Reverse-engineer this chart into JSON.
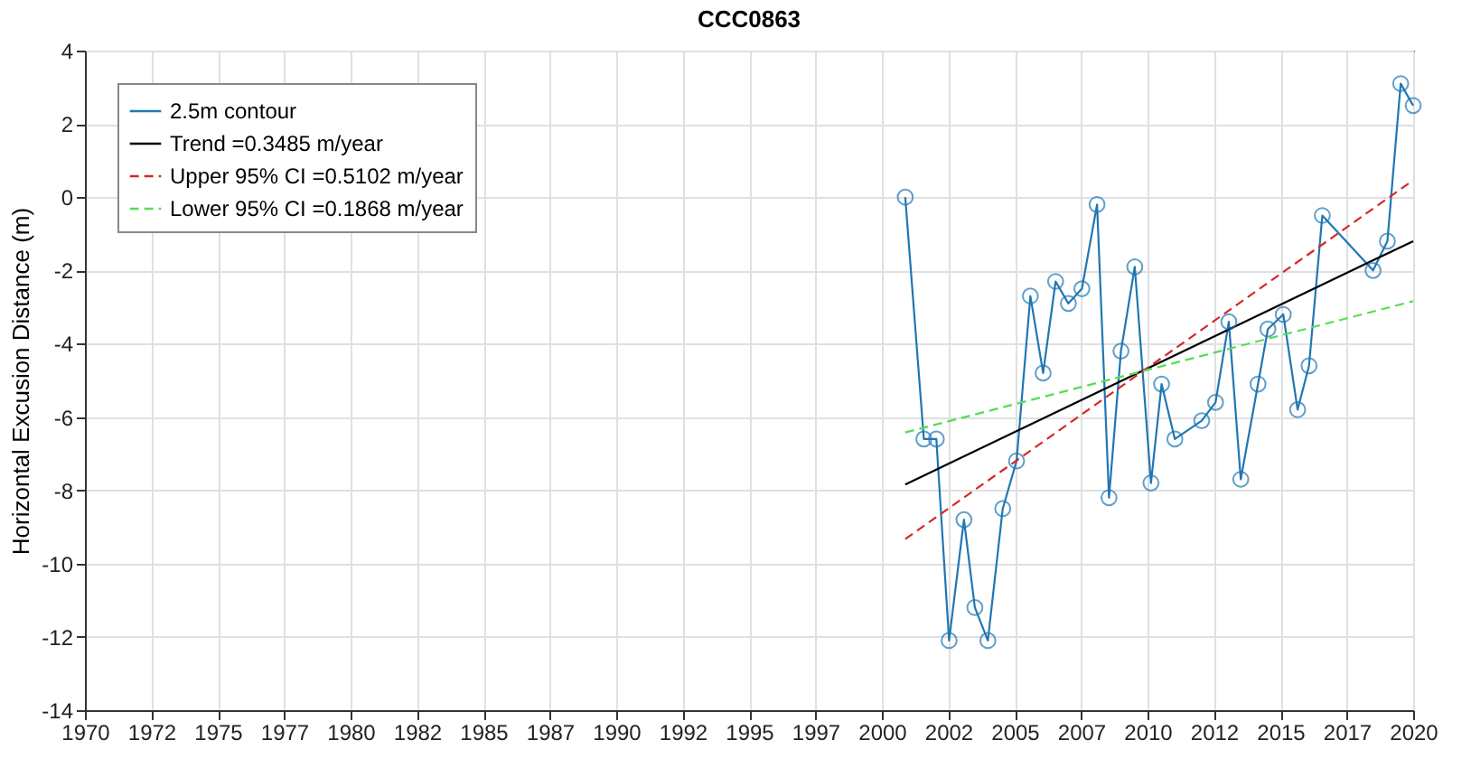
{
  "chart_data": {
    "type": "line",
    "title": "CCC0863",
    "ylabel": "Horizontal Excusion Distance (m)",
    "xlim": [
      1970,
      2020
    ],
    "xticks": [
      1970,
      {
        "value": 1972.5,
        "label": "1972"
      },
      1975,
      {
        "value": 1977.5,
        "label": "1977"
      },
      1980,
      {
        "value": 1982.5,
        "label": "1982"
      },
      1985,
      {
        "value": 1987.5,
        "label": "1987"
      },
      1990,
      {
        "value": 1992.5,
        "label": "1992"
      },
      1995,
      {
        "value": 1997.5,
        "label": "1997"
      },
      2000,
      {
        "value": 2002.5,
        "label": "2002"
      },
      2005,
      {
        "value": 2007.5,
        "label": "2007"
      },
      2010,
      {
        "value": 2012.5,
        "label": "2012"
      },
      2015,
      {
        "value": 2017.5,
        "label": "2017"
      },
      2020
    ],
    "ylim": [
      -14,
      4
    ],
    "yticks": [
      -14,
      -12,
      -10,
      -8,
      -6,
      -4,
      -2,
      0,
      2,
      4
    ],
    "grid": true,
    "legend": "top left",
    "series": [
      {
        "name": "2.5m contour",
        "color": "#1f77b4",
        "marker": "circle",
        "line_style": "solid",
        "x": [
          2000.88,
          2001.58,
          2002.05,
          2002.53,
          2003.09,
          2003.5,
          2003.99,
          2004.55,
          2005.07,
          2005.59,
          2006.07,
          2006.54,
          2007.02,
          2007.53,
          2008.1,
          2008.55,
          2009.0,
          2009.52,
          2010.13,
          2010.53,
          2011.03,
          2012.04,
          2012.56,
          2013.06,
          2013.51,
          2014.16,
          2014.53,
          2015.11,
          2015.65,
          2016.08,
          2016.58,
          2018.49,
          2019.03,
          2019.53,
          2020.0
        ],
        "values": [
          0.0,
          -6.6,
          -6.6,
          -12.1,
          -8.8,
          -11.2,
          -12.1,
          -8.5,
          -7.2,
          -2.7,
          -4.8,
          -2.3,
          -2.9,
          -2.5,
          -0.2,
          -8.2,
          -4.2,
          -1.9,
          -7.8,
          -5.1,
          -6.6,
          -6.1,
          -5.6,
          -3.4,
          -7.7,
          -5.1,
          -3.6,
          -3.2,
          -5.8,
          -4.6,
          -0.5,
          -2.0,
          -1.2,
          3.1,
          2.5
        ]
      },
      {
        "name": "Trend =0.3485 m/year",
        "color": "#000000",
        "marker": "none",
        "line_style": "solid",
        "x": [
          2000.88,
          2020.0
        ],
        "values": [
          -7.84,
          -1.2
        ]
      },
      {
        "name": "Upper 95% CI =0.5102 m/year",
        "color": "#d62728",
        "marker": "none",
        "line_style": "dashed",
        "x": [
          2000.88,
          2020.0
        ],
        "values": [
          -9.33,
          0.46
        ]
      },
      {
        "name": "Lower 95% CI =0.1868 m/year",
        "color": "#55dd55",
        "marker": "none",
        "line_style": "dashed",
        "x": [
          2000.88,
          2020.0
        ],
        "values": [
          -6.42,
          -2.84
        ]
      }
    ]
  }
}
